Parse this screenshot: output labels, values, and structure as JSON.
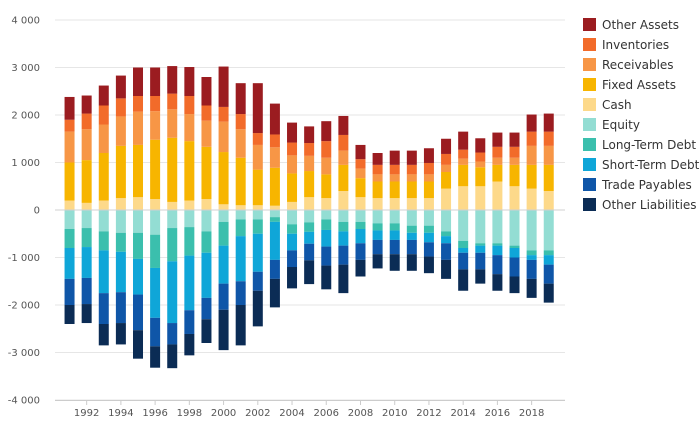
{
  "chart_data": {
    "type": "bar",
    "stacked": true,
    "title": "",
    "xlabel": "",
    "ylabel": "",
    "ylim": [
      -4000,
      4000
    ],
    "y_ticks": [
      4000,
      3000,
      2000,
      1000,
      0,
      -1000,
      -2000,
      -3000,
      -4000
    ],
    "y_tick_labels": [
      "4 000",
      "3 000",
      "2 000",
      "1 000",
      "0",
      "-1 000",
      "-2 000",
      "-3 000",
      "-4 000"
    ],
    "x_tick_labels": [
      "1992",
      "1994",
      "1996",
      "1998",
      "2000",
      "2002",
      "2004",
      "2006",
      "2008",
      "2010",
      "2012",
      "2014",
      "2016",
      "2018"
    ],
    "grid": true,
    "legend_position": "right",
    "categories": [
      "1991",
      "1992",
      "1993",
      "1994",
      "1995",
      "1996",
      "1997",
      "1998",
      "1999",
      "2000",
      "2001",
      "2002",
      "2003",
      "2004",
      "2005",
      "2006",
      "2007",
      "2008",
      "2009",
      "2010",
      "2011",
      "2012",
      "2013",
      "2014",
      "2015",
      "2016",
      "2017",
      "2018",
      "2019"
    ],
    "series": [
      {
        "name": "Other Assets",
        "color": "#9b1c20",
        "side": "positive",
        "values": [
          480,
          380,
          420,
          480,
          600,
          600,
          580,
          610,
          600,
          850,
          650,
          1050,
          650,
          420,
          350,
          420,
          400,
          300,
          250,
          300,
          300,
          310,
          320,
          380,
          300,
          300,
          300,
          360,
          380
        ]
      },
      {
        "name": "Inventories",
        "color": "#f26b2a",
        "side": "positive",
        "values": [
          250,
          330,
          400,
          380,
          330,
          320,
          330,
          380,
          320,
          310,
          320,
          250,
          270,
          270,
          270,
          350,
          330,
          200,
          200,
          200,
          200,
          240,
          230,
          190,
          190,
          230,
          230,
          300,
          300
        ]
      },
      {
        "name": "Receivables",
        "color": "#f79646",
        "side": "positive",
        "values": [
          650,
          650,
          600,
          620,
          700,
          600,
          600,
          570,
          550,
          640,
          600,
          520,
          430,
          380,
          320,
          350,
          300,
          200,
          150,
          150,
          150,
          150,
          150,
          130,
          120,
          150,
          150,
          400,
          400
        ]
      },
      {
        "name": "Fixed Assets",
        "color": "#f7b500",
        "side": "positive",
        "values": [
          800,
          900,
          1000,
          1100,
          1100,
          1250,
          1350,
          1250,
          1100,
          1100,
          1000,
          750,
          800,
          600,
          550,
          500,
          550,
          400,
          350,
          350,
          350,
          350,
          350,
          450,
          400,
          350,
          450,
          500,
          550
        ]
      },
      {
        "name": "Cash",
        "color": "#fdd98a",
        "side": "positive",
        "values": [
          200,
          150,
          200,
          250,
          270,
          230,
          170,
          200,
          230,
          120,
          100,
          100,
          90,
          170,
          270,
          250,
          400,
          270,
          250,
          250,
          250,
          250,
          450,
          500,
          500,
          600,
          500,
          450,
          400
        ]
      },
      {
        "name": "Equity",
        "color": "#93ddd3",
        "side": "negative",
        "values": [
          400,
          380,
          450,
          480,
          480,
          520,
          380,
          360,
          450,
          250,
          200,
          200,
          150,
          300,
          260,
          200,
          250,
          250,
          280,
          280,
          330,
          330,
          450,
          650,
          700,
          700,
          750,
          850,
          850
        ]
      },
      {
        "name": "Long-Term Debt",
        "color": "#3bbfad",
        "side": "negative",
        "values": [
          400,
          400,
          400,
          400,
          550,
          700,
          700,
          600,
          450,
          500,
          350,
          300,
          100,
          200,
          200,
          220,
          200,
          150,
          150,
          150,
          150,
          150,
          100,
          150,
          50,
          50,
          50,
          100,
          100
        ]
      },
      {
        "name": "Short-Term Debt",
        "color": "#0fa6d8",
        "side": "negative",
        "values": [
          650,
          650,
          900,
          850,
          750,
          1050,
          1300,
          1150,
          950,
          800,
          950,
          800,
          800,
          350,
          250,
          350,
          300,
          300,
          200,
          200,
          150,
          200,
          150,
          100,
          150,
          200,
          200,
          100,
          200
        ]
      },
      {
        "name": "Trade Payables",
        "color": "#0f56a8",
        "side": "negative",
        "values": [
          550,
          550,
          650,
          650,
          750,
          600,
          450,
          500,
          450,
          550,
          500,
          400,
          400,
          350,
          350,
          400,
          400,
          350,
          300,
          300,
          300,
          300,
          350,
          350,
          350,
          400,
          400,
          400,
          400
        ]
      },
      {
        "name": "Other Liabilities",
        "color": "#0b2c55",
        "side": "negative",
        "values": [
          400,
          400,
          450,
          450,
          600,
          450,
          500,
          450,
          500,
          850,
          850,
          750,
          600,
          450,
          500,
          500,
          600,
          350,
          300,
          350,
          350,
          350,
          400,
          450,
          300,
          350,
          350,
          400,
          400
        ]
      }
    ]
  }
}
